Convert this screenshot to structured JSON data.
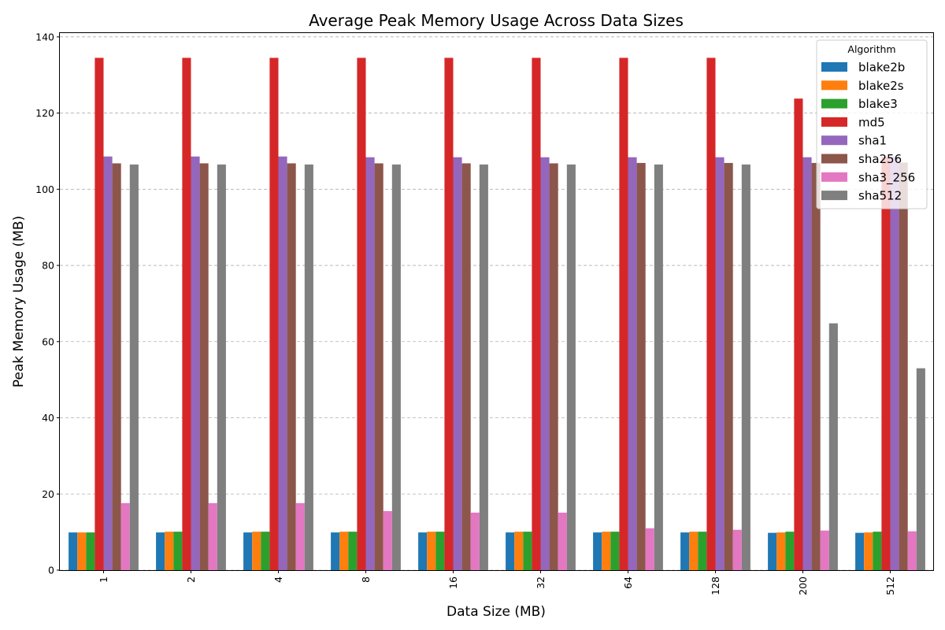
{
  "chart_data": {
    "type": "bar",
    "title": "Average Peak Memory Usage Across Data Sizes",
    "xlabel": "Data Size (MB)",
    "ylabel": "Peak Memory Usage (MB)",
    "categories": [
      "1",
      "2",
      "4",
      "8",
      "16",
      "32",
      "64",
      "128",
      "200",
      "512"
    ],
    "ylim": [
      0,
      141
    ],
    "yticks": [
      0,
      20,
      40,
      60,
      80,
      100,
      120,
      140
    ],
    "grid": "y, dashed",
    "legend": {
      "title": "Algorithm",
      "position": "top-right"
    },
    "series": [
      {
        "name": "blake2b",
        "color": "#1f77b4",
        "values": [
          9.9,
          9.9,
          9.9,
          9.9,
          9.9,
          9.9,
          9.9,
          9.9,
          9.8,
          9.8
        ]
      },
      {
        "name": "blake2s",
        "color": "#ff7f0e",
        "values": [
          9.9,
          10.1,
          10.1,
          10.1,
          10.1,
          10.1,
          10.1,
          10.1,
          9.9,
          9.9
        ]
      },
      {
        "name": "blake3",
        "color": "#2ca02c",
        "values": [
          9.9,
          10.1,
          10.1,
          10.1,
          10.1,
          10.1,
          10.1,
          10.1,
          10.1,
          10.1
        ]
      },
      {
        "name": "md5",
        "color": "#d62728",
        "values": [
          134.5,
          134.5,
          134.5,
          134.5,
          134.5,
          134.5,
          134.5,
          134.5,
          123.8,
          108.5
        ]
      },
      {
        "name": "sha1",
        "color": "#9467bd",
        "values": [
          108.6,
          108.6,
          108.6,
          108.4,
          108.4,
          108.4,
          108.4,
          108.4,
          108.4,
          108.5
        ]
      },
      {
        "name": "sha256",
        "color": "#8c564b",
        "values": [
          106.8,
          106.8,
          106.8,
          106.8,
          106.8,
          106.8,
          106.9,
          106.9,
          106.9,
          107.0
        ]
      },
      {
        "name": "sha3_256",
        "color": "#e377c2",
        "values": [
          17.6,
          17.6,
          17.6,
          15.5,
          15.1,
          15.1,
          11.0,
          10.6,
          10.4,
          10.2
        ]
      },
      {
        "name": "sha512",
        "color": "#7f7f7f",
        "values": [
          106.5,
          106.5,
          106.5,
          106.5,
          106.5,
          106.5,
          106.5,
          106.5,
          64.8,
          53.0
        ]
      }
    ]
  }
}
